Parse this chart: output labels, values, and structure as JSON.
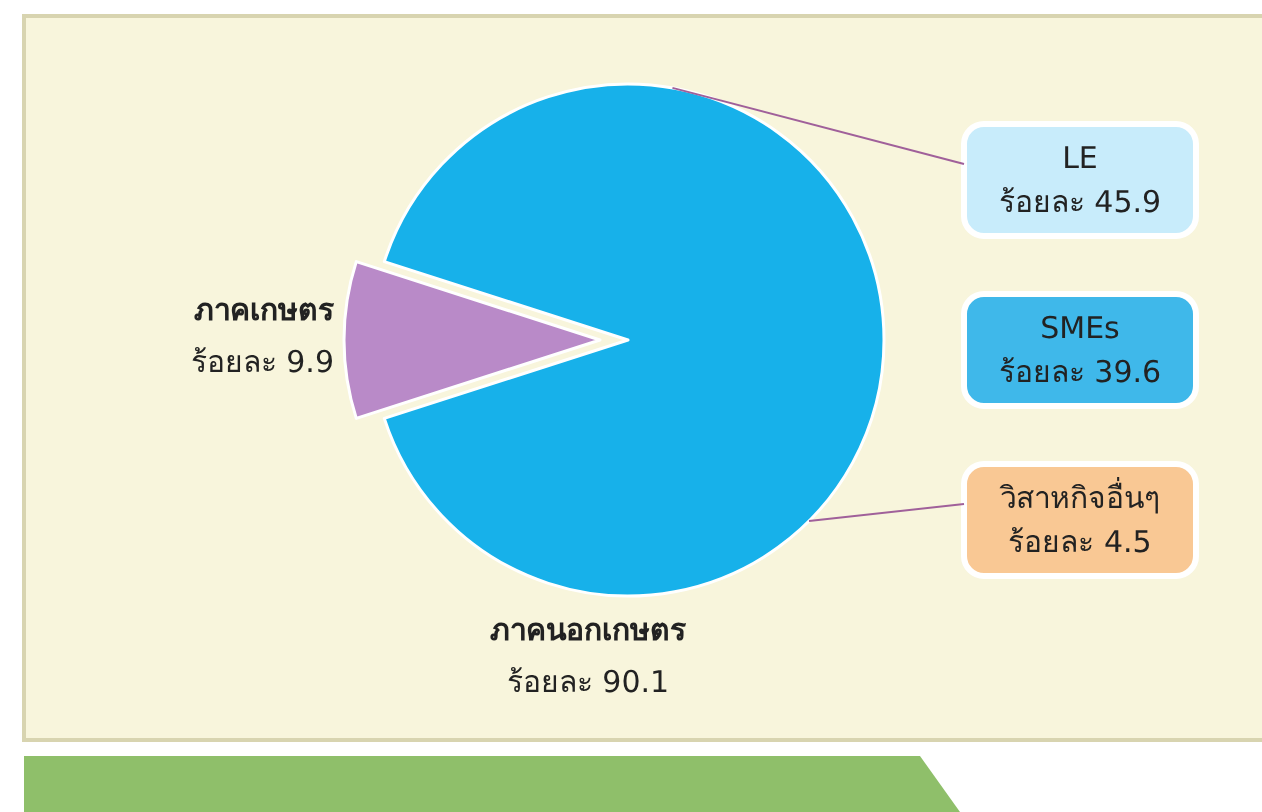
{
  "chart_data": {
    "type": "pie",
    "categories": [
      "ภาคเกษตร",
      "ภาคนอกเกษตร"
    ],
    "values": [
      9.9,
      90.1
    ],
    "colors": [
      "#b98ac8",
      "#17b1ea"
    ],
    "value_labels": [
      "ร้อยละ 9.9",
      "ร้อยละ 90.1"
    ],
    "annotations": [
      "LE\nร้อยละ 45.9",
      "SMEs\nร้อยละ 39.6",
      "วิสาหกิจอื่นๆ\nร้อยละ 4.5"
    ]
  }
}
